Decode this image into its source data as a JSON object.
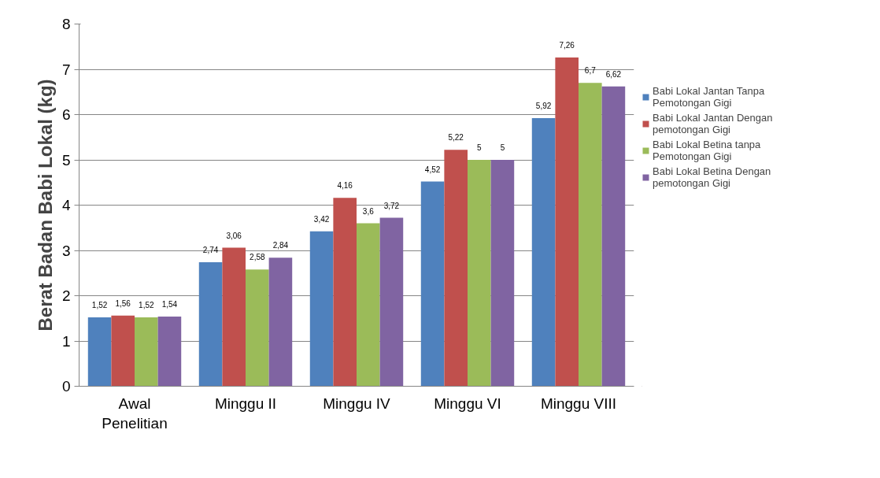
{
  "chart_data": {
    "type": "bar",
    "ylabel": "Berat Badan Babi Lokal (kg)",
    "categories": [
      "Awal Penelitian",
      "Minggu II",
      "Minggu IV",
      "Minggu VI",
      "Minggu VIII"
    ],
    "ylim": [
      0,
      8
    ],
    "yticks": [
      0,
      1,
      2,
      3,
      4,
      5,
      6,
      7,
      8
    ],
    "grid": "y",
    "legend": "right",
    "series": [
      {
        "name": "Babi Lokal Jantan Tanpa Pemotongan Gigi",
        "color": "#4f81bd",
        "values": [
          1.52,
          2.74,
          3.42,
          4.52,
          5.92
        ],
        "value_labels": [
          "1,52",
          "2,74",
          "3,42",
          "4,52",
          "5,92"
        ]
      },
      {
        "name": "Babi Lokal Jantan Dengan pemotongan Gigi",
        "color": "#c0504d",
        "values": [
          1.56,
          3.06,
          4.16,
          5.22,
          7.26
        ],
        "value_labels": [
          "1,56",
          "3,06",
          "4,16",
          "5,22",
          "7,26"
        ]
      },
      {
        "name": "Babi Lokal Betina tanpa Pemotongan Gigi",
        "color": "#9bbb59",
        "values": [
          1.52,
          2.58,
          3.6,
          5,
          6.7
        ],
        "value_labels": [
          "1,52",
          "2,58",
          "3,6",
          "5",
          "6,7"
        ]
      },
      {
        "name": "Babi Lokal Betina Dengan pemotongan Gigi",
        "color": "#8064a2",
        "values": [
          1.54,
          2.84,
          3.72,
          5,
          6.62
        ],
        "value_labels": [
          "1,54",
          "2,84",
          "3,72",
          "5",
          "6,62"
        ]
      }
    ]
  }
}
